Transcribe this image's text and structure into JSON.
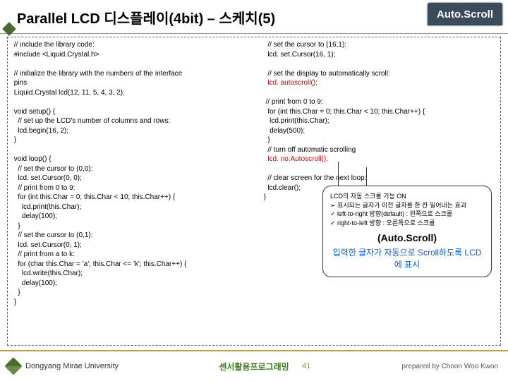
{
  "header": {
    "title": "Parallel LCD 디스플레이(4bit) – 스케치(5)",
    "tab_label": "Auto.Scroll"
  },
  "code_left": [
    " // include the library code:",
    " #include <Liquid.Crystal.h>",
    "",
    " // initialize the library with the numbers of the interface",
    " pins",
    " Liquid.Crystal lcd(12, 11, 5, 4, 3, 2);",
    "",
    " void setup() {",
    "   // set up the LCD's number of columns and rows:",
    "   lcd.begin(16, 2);",
    " }",
    "",
    " void loop() {",
    "   // set the cursor to (0,0):",
    "   lcd. set.Cursor(0, 0);",
    "   // print from 0 to 9:",
    "   for (int this.Char = 0; this.Char < 10; this.Char++) {",
    "     lcd.print(this.Char);",
    "     delay(100);",
    "   }",
    "   // set the cursor to (0,1):",
    "   lcd. set.Cursor(0, 1);",
    "   // print from a to k:",
    "   for (char this.Char = 'a'; this.Char <= 'k'; this.Char++) {",
    "     lcd.write(this.Char);",
    "     delay(100);",
    "   }",
    " }"
  ],
  "code_right": [
    {
      "t": "   // set the cursor to (16,1):",
      "c": false
    },
    {
      "t": "   lcd. set.Cursor(16, 1);",
      "c": false
    },
    {
      "t": "",
      "c": false
    },
    {
      "t": "   // set the display to automatically scroll:",
      "c": false
    },
    {
      "t": "   lcd. autoscroll();",
      "c": true
    },
    {
      "t": "",
      "c": false
    },
    {
      "t": "  // print from 0 to 9:",
      "c": false
    },
    {
      "t": "   for (int this.Char = 0; this.Char < 10; this.Char++) {",
      "c": false
    },
    {
      "t": "    lcd.print(this.Char);",
      "c": false
    },
    {
      "t": "    delay(500);",
      "c": false
    },
    {
      "t": "   }",
      "c": false
    },
    {
      "t": "   // turn off automatic scrolling",
      "c": false
    },
    {
      "t": "   lcd. no.Autoscroll();",
      "c": true
    },
    {
      "t": "",
      "c": false
    },
    {
      "t": "   // clear screen for the next loop:",
      "c": false
    },
    {
      "t": "   lcd.clear();",
      "c": false
    },
    {
      "t": " }",
      "c": false
    }
  ],
  "callout": {
    "line1": "LCD의 자동 스크롤 기능 ON",
    "bullets": [
      "➢ 표시되는 글자가 이전 글자를 한 칸 밀어내는 효과",
      "✓ left-to-right 방향(default) : 왼쪽으로 스크롤",
      "✓ right-to-left 방향 : 오른쪽으로 스크롤"
    ],
    "title": "(Auto.Scroll)",
    "desc": "입력한 글자가 자동으로 Scroll하도록 LCD에 표시"
  },
  "footer": {
    "university": "Dongyang Mirae University",
    "center": "센서활용프로그래밍",
    "page": "41",
    "right": "prepared by Choon Woo Kwon"
  },
  "colors": {
    "accent": "#3a4b5c",
    "highlight": "#cc0000",
    "link": "#0b5ed7",
    "gold": "#c49a3a"
  }
}
